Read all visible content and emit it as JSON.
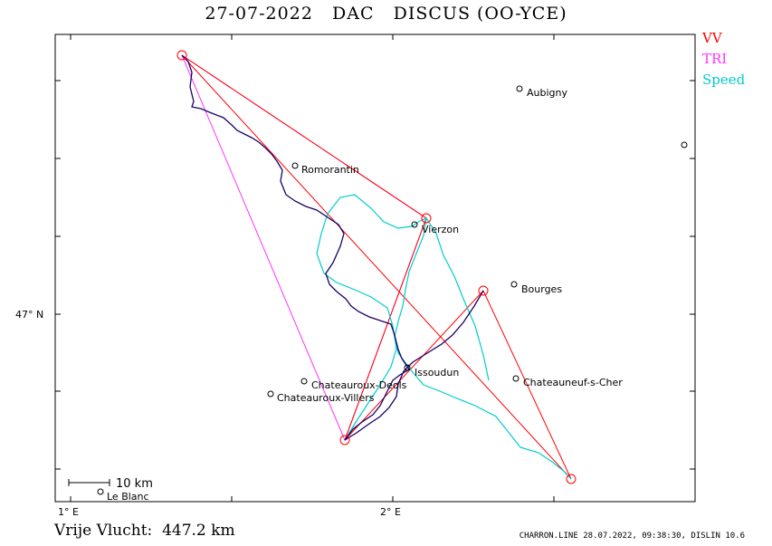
{
  "title": "27-07-2022   DAC   DISCUS (OO-YCE)",
  "legend": {
    "vv": "VV",
    "tri": "TRI",
    "speed": "Speed"
  },
  "colors": {
    "vv": "#ff0000",
    "tri": "#ff33ff",
    "speed": "#00cccc",
    "track": "#1a0066",
    "frame": "#000000"
  },
  "axes": {
    "x_ticks": [
      {
        "label": "1° E"
      },
      {
        "label": "2° E"
      }
    ],
    "y_ticks": [
      {
        "label": "47° N"
      }
    ]
  },
  "scale_bar": {
    "label": "10 km"
  },
  "towns": [
    {
      "name": "Aubigny"
    },
    {
      "name": "Romorantin"
    },
    {
      "name": "Vierzon"
    },
    {
      "name": "Bourges"
    },
    {
      "name": "Issoudun"
    },
    {
      "name": "Chateauroux-Deols"
    },
    {
      "name": "Chateauneuf-s-Cher"
    },
    {
      "name": "Chateauroux-Villers"
    },
    {
      "name": "Le Blanc"
    }
  ],
  "footer": {
    "distance": "Vrije Vlucht:  447.2 km",
    "info": "CHARRON.LINE 28.07.2022, 09:38:30, DISLIN 10.6"
  }
}
